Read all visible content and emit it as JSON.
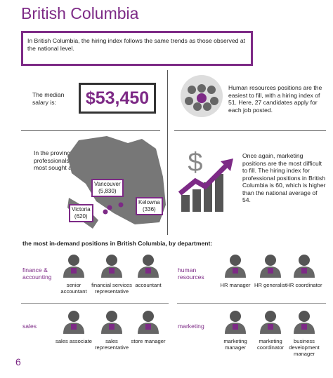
{
  "title": "British Columbia",
  "intro": "In British Columbia, the hiring index follows the same trends as those observed at the national level.",
  "salary": {
    "label": "The median salary is:",
    "value": "$53,450"
  },
  "hr_note": "Human resources positions are the easiest to fill, with a hiring index of 51. Here, 27 candidates apply for each job posted.",
  "cities": {
    "label": "In the province, professionals are most sought after in:",
    "items": [
      {
        "name": "Vancouver",
        "count": "(5,830)"
      },
      {
        "name": "Kelowna",
        "count": "(336)"
      },
      {
        "name": "Victoria",
        "count": "(620)"
      }
    ]
  },
  "marketing_note": "Once again, marketing positions are the most difficult to fill. The hiring index for professional positions in British Columbia is 60, which is higher than the national average of 54.",
  "departments": {
    "heading": "the most in-demand positions in British Columbia, by department:",
    "groups": [
      {
        "name": "finance & accounting",
        "positions": [
          "senior accountant",
          "financial services representative",
          "accountant"
        ]
      },
      {
        "name": "human resources",
        "positions": [
          "HR manager",
          "HR generalist",
          "HR coordinator"
        ]
      },
      {
        "name": "sales",
        "positions": [
          "sales associate",
          "sales representative",
          "store manager"
        ]
      },
      {
        "name": "marketing",
        "positions": [
          "marketing manager",
          "marketing coordinator",
          "business development manager"
        ]
      }
    ]
  },
  "page_number": "6"
}
